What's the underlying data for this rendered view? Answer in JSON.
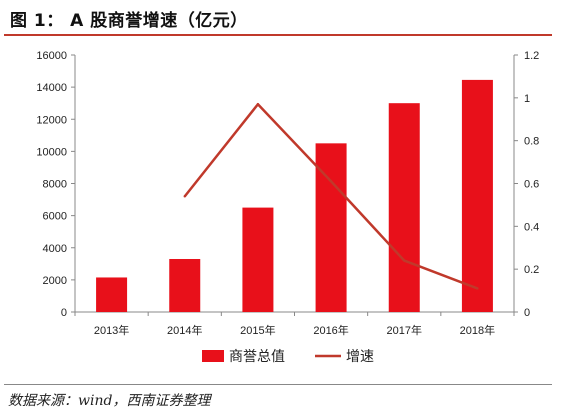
{
  "title": "图 1： A 股商誉增速（亿元）",
  "source": "数据来源：wind，西南证券整理",
  "chart_data": {
    "type": "bar",
    "categories": [
      "2013年",
      "2014年",
      "2015年",
      "2016年",
      "2017年",
      "2018年"
    ],
    "series": [
      {
        "name": "商誉总值",
        "type": "bar",
        "axis": "left",
        "color": "#e8101a",
        "values": [
          2150,
          3300,
          6500,
          10500,
          13000,
          14450
        ]
      },
      {
        "name": "增速",
        "type": "line",
        "axis": "right",
        "color": "#c0392b",
        "values": [
          null,
          0.54,
          0.97,
          0.61,
          0.24,
          0.11
        ]
      }
    ],
    "left_axis": {
      "min": 0,
      "max": 16000,
      "ticks": [
        0,
        2000,
        4000,
        6000,
        8000,
        10000,
        12000,
        14000,
        16000
      ]
    },
    "right_axis": {
      "min": 0,
      "max": 1.2,
      "ticks": [
        "0",
        "0.2",
        "0.4",
        "0.6",
        "0.8",
        "1",
        "1.2"
      ]
    },
    "legend_position": "bottom",
    "grid": false
  }
}
